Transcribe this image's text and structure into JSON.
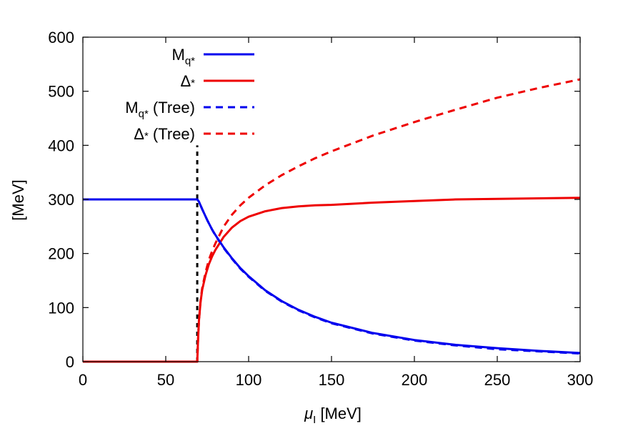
{
  "chart_data": {
    "type": "line",
    "xlabel": {
      "symbol": "μ",
      "subscript": "I",
      "unit": " [MeV]"
    },
    "ylabel": "[MeV]",
    "xlim": [
      0,
      300
    ],
    "ylim": [
      0,
      600
    ],
    "xticks": [
      "0",
      "50",
      "100",
      "150",
      "200",
      "250",
      "300"
    ],
    "yticks": [
      "0",
      "100",
      "200",
      "300",
      "400",
      "500",
      "600"
    ],
    "grid": false,
    "legend_position": "top-left",
    "series": [
      {
        "legend": {
          "main": "M",
          "sub": "q*",
          "suffix": ""
        },
        "color": "#0000ee",
        "style": "solid",
        "x": [
          0,
          69,
          70,
          72,
          75,
          78,
          80,
          85,
          90,
          95,
          100,
          110,
          120,
          130,
          140,
          150,
          175,
          200,
          225,
          250,
          275,
          300
        ],
        "y": [
          300,
          300,
          296,
          282,
          262,
          244,
          234,
          211,
          191,
          173,
          158,
          132,
          112,
          96,
          83,
          72,
          53,
          40,
          31,
          25,
          20,
          16
        ]
      },
      {
        "legend": {
          "main": "Δ",
          "sub": "*",
          "suffix": ""
        },
        "color": "#ee0000",
        "style": "solid",
        "x": [
          0,
          69,
          69.5,
          70,
          71,
          72,
          74,
          76,
          78,
          80,
          85,
          90,
          95,
          100,
          110,
          120,
          130,
          140,
          150,
          175,
          200,
          225,
          250,
          275,
          300
        ],
        "y": [
          0,
          0,
          40,
          75,
          110,
          133,
          160,
          180,
          195,
          207,
          231,
          248,
          260,
          268,
          278,
          284,
          287,
          289,
          290,
          294,
          297,
          300,
          301,
          302,
          303
        ]
      },
      {
        "legend": {
          "main": "M",
          "sub": "q*",
          "suffix": " (Tree)"
        },
        "color": "#0000ee",
        "style": "dashed",
        "x": [
          0,
          69,
          70,
          72,
          75,
          78,
          80,
          85,
          90,
          95,
          100,
          110,
          120,
          130,
          140,
          150,
          175,
          200,
          225,
          250,
          275,
          300
        ],
        "y": [
          300,
          300,
          296,
          282,
          262,
          244,
          233,
          210,
          190,
          172,
          157,
          131,
          111,
          95,
          82,
          71,
          52,
          39,
          30,
          23,
          19,
          15
        ]
      },
      {
        "legend": {
          "main": "Δ",
          "sub": "*",
          "suffix": " (Tree)"
        },
        "color": "#ee0000",
        "style": "dashed",
        "x": [
          0,
          69,
          69.5,
          70,
          71,
          72,
          74,
          76,
          78,
          80,
          85,
          90,
          95,
          100,
          110,
          120,
          130,
          140,
          150,
          175,
          200,
          225,
          250,
          275,
          300
        ],
        "y": [
          0,
          0,
          40,
          75,
          112,
          136,
          165,
          188,
          205,
          219,
          250,
          272,
          289,
          303,
          326,
          345,
          361,
          376,
          389,
          418,
          443,
          466,
          488,
          506,
          522
        ]
      }
    ],
    "vline": {
      "x": 69,
      "y_from": 0,
      "y_to": 400,
      "color": "#000000",
      "style": "dashed"
    }
  }
}
